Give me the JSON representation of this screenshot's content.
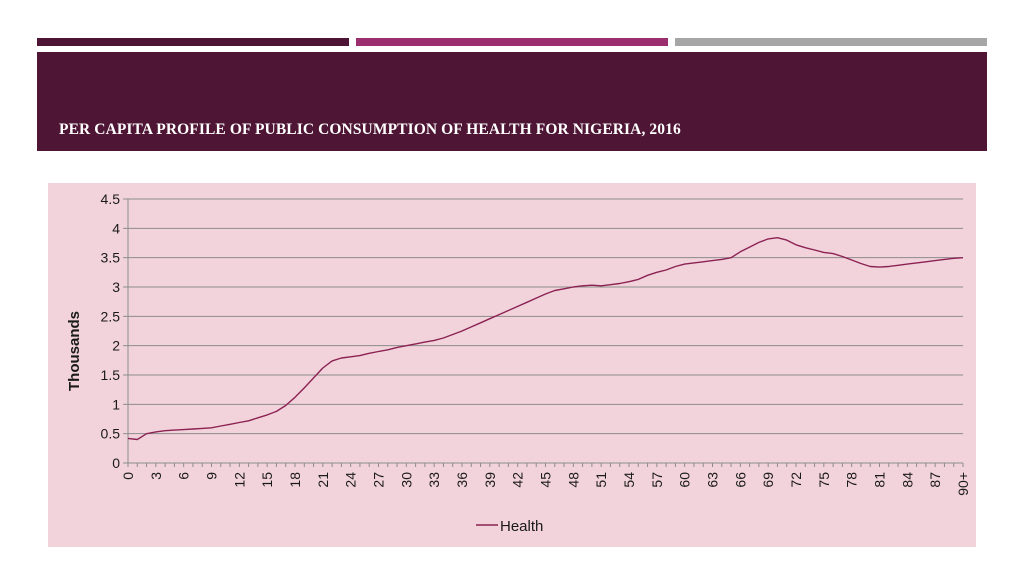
{
  "slide": {
    "title": "PER CAPITA PROFILE OF PUBLIC CONSUMPTION OF HEALTH FOR NIGERIA, 2016"
  },
  "theme": {
    "dark": "#4e1634",
    "accent": "#9b2f6e",
    "gray": "#a6a6a6",
    "chart_bg": "#f2d3dc",
    "line": "#8b2252",
    "grid": "#8c8c8c"
  },
  "chart_data": {
    "type": "line",
    "title": "",
    "xlabel": "",
    "ylabel": "Thousands",
    "ylim": [
      0,
      4.5
    ],
    "y_ticks": [
      "0",
      "0.5",
      "1",
      "1.5",
      "2",
      "2.5",
      "3",
      "3.5",
      "4",
      "4.5"
    ],
    "tick_every": 3,
    "x_tick_labels": [
      "0",
      "3",
      "6",
      "9",
      "12",
      "15",
      "18",
      "21",
      "24",
      "27",
      "30",
      "33",
      "36",
      "39",
      "42",
      "45",
      "48",
      "51",
      "54",
      "57",
      "60",
      "63",
      "66",
      "69",
      "72",
      "75",
      "78",
      "81",
      "84",
      "87",
      "90+"
    ],
    "legend_position": "bottom",
    "series": [
      {
        "name": "Health",
        "x": [
          "0",
          "1",
          "2",
          "3",
          "4",
          "5",
          "6",
          "7",
          "8",
          "9",
          "10",
          "11",
          "12",
          "13",
          "14",
          "15",
          "16",
          "17",
          "18",
          "19",
          "20",
          "21",
          "22",
          "23",
          "24",
          "25",
          "26",
          "27",
          "28",
          "29",
          "30",
          "31",
          "32",
          "33",
          "34",
          "35",
          "36",
          "37",
          "38",
          "39",
          "40",
          "41",
          "42",
          "43",
          "44",
          "45",
          "46",
          "47",
          "48",
          "49",
          "50",
          "51",
          "52",
          "53",
          "54",
          "55",
          "56",
          "57",
          "58",
          "59",
          "60",
          "61",
          "62",
          "63",
          "64",
          "65",
          "66",
          "67",
          "68",
          "69",
          "70",
          "71",
          "72",
          "73",
          "74",
          "75",
          "76",
          "77",
          "78",
          "79",
          "80",
          "81",
          "82",
          "83",
          "84",
          "85",
          "86",
          "87",
          "88",
          "89",
          "90+"
        ],
        "values": [
          0.42,
          0.4,
          0.5,
          0.53,
          0.55,
          0.56,
          0.57,
          0.58,
          0.59,
          0.6,
          0.63,
          0.66,
          0.69,
          0.72,
          0.77,
          0.82,
          0.88,
          0.98,
          1.12,
          1.28,
          1.45,
          1.62,
          1.74,
          1.79,
          1.81,
          1.83,
          1.87,
          1.9,
          1.93,
          1.97,
          2.0,
          2.03,
          2.06,
          2.09,
          2.13,
          2.19,
          2.25,
          2.32,
          2.39,
          2.46,
          2.53,
          2.6,
          2.67,
          2.74,
          2.81,
          2.88,
          2.94,
          2.97,
          3.0,
          3.02,
          3.03,
          3.02,
          3.04,
          3.06,
          3.09,
          3.13,
          3.2,
          3.25,
          3.29,
          3.35,
          3.39,
          3.41,
          3.43,
          3.45,
          3.47,
          3.5,
          3.6,
          3.68,
          3.76,
          3.82,
          3.84,
          3.8,
          3.72,
          3.67,
          3.63,
          3.59,
          3.57,
          3.52,
          3.46,
          3.4,
          3.35,
          3.34,
          3.35,
          3.37,
          3.39,
          3.41,
          3.43,
          3.45,
          3.47,
          3.49,
          3.5
        ]
      }
    ]
  }
}
